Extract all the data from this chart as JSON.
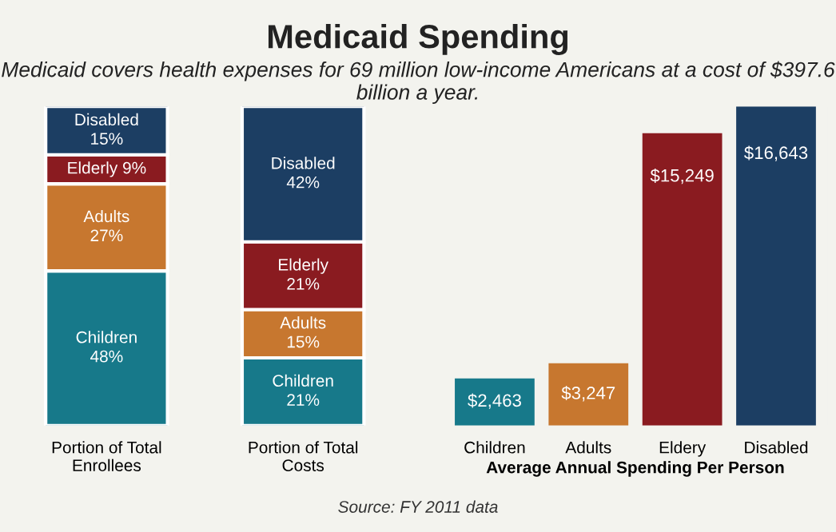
{
  "chart_data": [
    {
      "type": "bar",
      "stacked": true,
      "title": "Medicaid Spending",
      "subtitle": "Medicaid covers health expenses for 69 million low-income Americans at a cost of $397.6 billion a year.",
      "categories": [
        "Portion of Total\nEnrollees",
        "Portion of Total\nCosts"
      ],
      "series": [
        {
          "name": "Children",
          "color": "#17798a",
          "values": [
            48,
            21
          ],
          "value_labels": [
            "48%",
            "21%"
          ]
        },
        {
          "name": "Adults",
          "color": "#c7772f",
          "values": [
            27,
            15
          ],
          "value_labels": [
            "27%",
            "15%"
          ]
        },
        {
          "name": "Elderly",
          "color": "#8a1b20",
          "values": [
            9,
            21
          ],
          "value_labels": [
            "9%",
            "21%"
          ]
        },
        {
          "name": "Disabled",
          "color": "#1c3e63",
          "values": [
            15,
            42
          ],
          "value_labels": [
            "15%",
            "42%"
          ]
        }
      ]
    },
    {
      "type": "bar",
      "categories": [
        "Children",
        "Adults",
        "Eldery",
        "Disabled"
      ],
      "values": [
        2463,
        3247,
        15249,
        16643
      ],
      "colors": [
        "#17798a",
        "#c7772f",
        "#8a1b20",
        "#1c3e63"
      ],
      "value_labels": [
        "$2,463",
        "$3,247",
        "$15,249",
        "$16,643"
      ],
      "xlabel": "Average Annual Spending Per Person",
      "annotations": [
        "Source: FY 2011 data"
      ]
    }
  ]
}
